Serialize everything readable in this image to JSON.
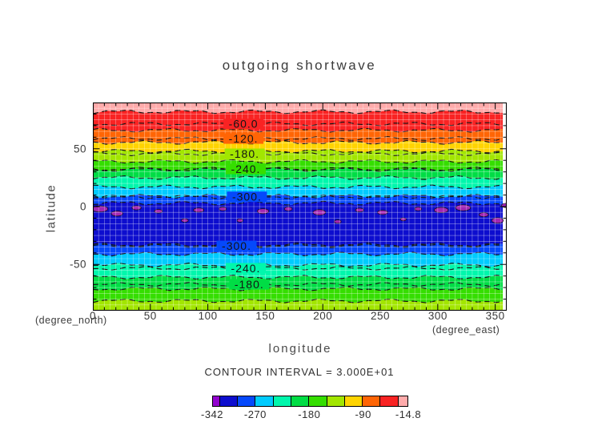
{
  "title": "outgoing shortwave",
  "axes": {
    "x_label": "longitude",
    "y_label": "latitude",
    "x_unit": "(degree_east)",
    "y_unit": "(degree_north)",
    "x_ticks": [
      0,
      50,
      100,
      150,
      200,
      250,
      300,
      350
    ],
    "y_ticks": [
      50,
      0,
      -50
    ],
    "x_range": [
      0,
      360
    ],
    "y_range": [
      -90,
      90
    ],
    "minor_tick_step_deg": 10,
    "major_tick_step_deg": 50,
    "grid_step_deg": 5
  },
  "footer": {
    "contour_interval_text": "CONTOUR INTERVAL = 3.000E+01"
  },
  "chart_data": {
    "type": "heatmap",
    "subtype": "filled-contour-map",
    "title": "outgoing shortwave",
    "xlabel": "longitude (degree_east)",
    "ylabel": "latitude (degree_north)",
    "x_range": [
      0,
      360
    ],
    "y_range": [
      -90,
      90
    ],
    "contour_interval": 30,
    "value_min": -342,
    "value_max": -14.8,
    "grid_on": true,
    "bands": [
      {
        "name": "pink-n",
        "lat_top": 90,
        "lat_bottom": 82,
        "color": "#FFABAB",
        "values": [
          -30,
          -14.8
        ]
      },
      {
        "name": "red-n",
        "lat_top": 82,
        "lat_bottom": 66,
        "color": "#F92323",
        "values": [
          -60,
          -30
        ]
      },
      {
        "name": "orange-n",
        "lat_top": 66,
        "lat_bottom": 55.5,
        "color": "#FF6505",
        "values": [
          -90,
          -60
        ]
      },
      {
        "name": "gold-n",
        "lat_top": 55.5,
        "lat_bottom": 48,
        "color": "#FFD400",
        "values": [
          -120,
          -90
        ]
      },
      {
        "name": "chartreuse-n",
        "lat_top": 48,
        "lat_bottom": 39,
        "color": "#A2E600",
        "values": [
          -150,
          -120
        ]
      },
      {
        "name": "yellowgreen-n",
        "lat_top": 39,
        "lat_bottom": 32,
        "color": "#35DE00",
        "values": [
          -180,
          -150
        ]
      },
      {
        "name": "green-n",
        "lat_top": 32,
        "lat_bottom": 25,
        "color": "#00DD45",
        "values": [
          -210,
          -180
        ]
      },
      {
        "name": "spring-n",
        "lat_top": 25,
        "lat_bottom": 17,
        "color": "#00F7AC",
        "values": [
          -240,
          -210
        ]
      },
      {
        "name": "cyan-n",
        "lat_top": 17,
        "lat_bottom": 9,
        "color": "#00CBFE",
        "values": [
          -270,
          -240
        ]
      },
      {
        "name": "blue-n",
        "lat_top": 9,
        "lat_bottom": 3,
        "color": "#0549FB",
        "values": [
          -300,
          -270
        ]
      },
      {
        "name": "navy-equatorial",
        "lat_top": 3,
        "lat_bottom": -33,
        "color": "#0D0DCE",
        "values": [
          -330,
          -300
        ]
      },
      {
        "name": "blue-s",
        "lat_top": -33,
        "lat_bottom": -41,
        "color": "#0549FB",
        "values": [
          -300,
          -270
        ]
      },
      {
        "name": "cyan-s",
        "lat_top": -41,
        "lat_bottom": -50.5,
        "color": "#00CBFE",
        "values": [
          -270,
          -240
        ]
      },
      {
        "name": "spring-s",
        "lat_top": -50.5,
        "lat_bottom": -61,
        "color": "#00F7AC",
        "values": [
          -240,
          -210
        ]
      },
      {
        "name": "green-s",
        "lat_top": -61,
        "lat_bottom": -71,
        "color": "#00DD45",
        "values": [
          -210,
          -180
        ]
      },
      {
        "name": "yellowgreen-s",
        "lat_top": -71,
        "lat_bottom": -81.5,
        "color": "#35DE00",
        "values": [
          -180,
          -150
        ]
      },
      {
        "name": "chartreuse-s",
        "lat_top": -81.5,
        "lat_bottom": -90,
        "color": "#A2E600",
        "values": [
          -150,
          -120
        ]
      }
    ],
    "patch_color": "#A227B4",
    "patch_values": [
      -342,
      -330
    ],
    "patches": [
      {
        "lon": 6,
        "lat": -2,
        "rx": 7,
        "ry": 2.6
      },
      {
        "lon": 21,
        "lat": -6,
        "rx": 5,
        "ry": 2.2
      },
      {
        "lon": 38,
        "lat": -1,
        "rx": 4,
        "ry": 1.8
      },
      {
        "lon": 57,
        "lat": -4,
        "rx": 3.5,
        "ry": 1.6
      },
      {
        "lon": 80,
        "lat": -12,
        "rx": 3,
        "ry": 1.5
      },
      {
        "lon": 92,
        "lat": -3,
        "rx": 4.5,
        "ry": 1.8
      },
      {
        "lon": 113,
        "lat": -2,
        "rx": 3.2,
        "ry": 1.5
      },
      {
        "lon": 128,
        "lat": -12,
        "rx": 2.6,
        "ry": 1.4
      },
      {
        "lon": 148,
        "lat": -4,
        "rx": 5,
        "ry": 2.2
      },
      {
        "lon": 170,
        "lat": -2,
        "rx": 3.4,
        "ry": 1.6
      },
      {
        "lon": 197,
        "lat": -5,
        "rx": 5.5,
        "ry": 2.4
      },
      {
        "lon": 213,
        "lat": -13,
        "rx": 3,
        "ry": 1.5
      },
      {
        "lon": 232,
        "lat": -3,
        "rx": 3.6,
        "ry": 1.6
      },
      {
        "lon": 252,
        "lat": -5,
        "rx": 4.4,
        "ry": 1.9
      },
      {
        "lon": 270,
        "lat": -11,
        "rx": 2.6,
        "ry": 1.3
      },
      {
        "lon": 283,
        "lat": -2,
        "rx": 3,
        "ry": 1.5
      },
      {
        "lon": 303,
        "lat": -3,
        "rx": 6,
        "ry": 2.4
      },
      {
        "lon": 322,
        "lat": -1,
        "rx": 6.5,
        "ry": 2.6
      },
      {
        "lon": 340,
        "lat": -7,
        "rx": 4,
        "ry": 1.8
      },
      {
        "lon": 352,
        "lat": -12,
        "rx": 5,
        "ry": 2.4
      },
      {
        "lon": 359,
        "lat": 1,
        "rx": 3.5,
        "ry": 1.8
      }
    ],
    "contour_labels": [
      {
        "text": "-60.0",
        "lon": 131,
        "lat": 71.5
      },
      {
        "text": "-120.",
        "lon": 131,
        "lat": 58.8
      },
      {
        "text": "-180.",
        "lon": 132,
        "lat": 45.7
      },
      {
        "text": "-240.",
        "lon": 133,
        "lat": 32.5
      },
      {
        "text": "-300.",
        "lon": 134,
        "lat": 8.5
      },
      {
        "text": "-300.",
        "lon": 125,
        "lat": -34.0
      },
      {
        "text": "-240.",
        "lon": 133,
        "lat": -53.3
      },
      {
        "text": "-180.",
        "lon": 136,
        "lat": -67.2
      }
    ],
    "colorbar": {
      "min": -342,
      "max": -14.8,
      "boundaries": [
        -342,
        -330,
        -300,
        -270,
        -240,
        -210,
        -180,
        -150,
        -120,
        -90,
        -60,
        -30,
        -14.8
      ],
      "colors": [
        "#9303CF",
        "#0D0DCE",
        "#0549FB",
        "#00CBFE",
        "#00F7AC",
        "#00DD45",
        "#35DE00",
        "#A2E600",
        "#FFD400",
        "#FF6505",
        "#F92323",
        "#FFABAB"
      ],
      "tick_values": [
        -342,
        -270,
        -180,
        -90,
        -14.8
      ],
      "tick_labels": [
        "-342",
        "-270",
        "-180",
        "-90",
        "-14.8"
      ],
      "legend_position": "bottom"
    }
  }
}
